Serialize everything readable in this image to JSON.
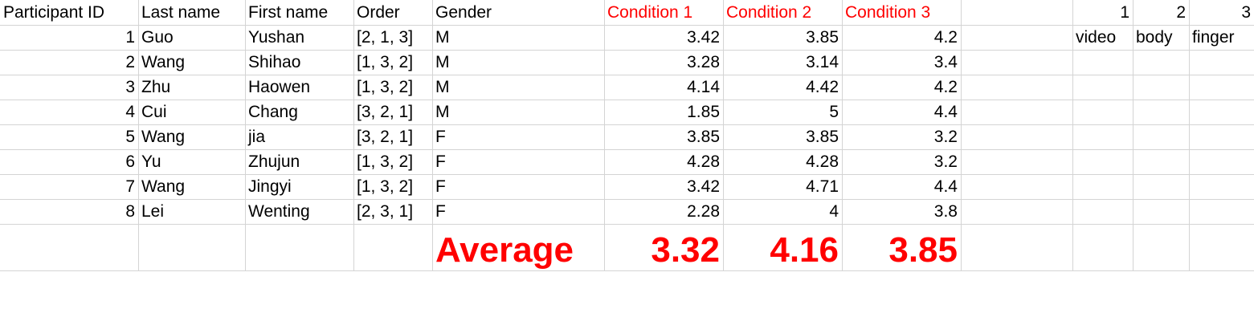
{
  "headers": {
    "participant_id": "Participant ID",
    "last_name": "Last name",
    "first_name": "First name",
    "order": "Order",
    "gender": "Gender",
    "condition_1": "Condition 1",
    "condition_2": "Condition 2",
    "condition_3": "Condition 3",
    "map_1": "1",
    "map_2": "2",
    "map_3": "3"
  },
  "condition_labels": [
    "video",
    "body",
    "finger"
  ],
  "rows": [
    {
      "id": "1",
      "last": "Guo",
      "first": "Yushan",
      "order": "[2, 1, 3]",
      "gender": "M",
      "c1": "3.42",
      "c2": "3.85",
      "c3": "4.2"
    },
    {
      "id": "2",
      "last": "Wang",
      "first": "Shihao",
      "order": "[1, 3, 2]",
      "gender": "M",
      "c1": "3.28",
      "c2": "3.14",
      "c3": "3.4"
    },
    {
      "id": "3",
      "last": "Zhu",
      "first": "Haowen",
      "order": "[1, 3, 2]",
      "gender": "M",
      "c1": "4.14",
      "c2": "4.42",
      "c3": "4.2"
    },
    {
      "id": "4",
      "last": "Cui",
      "first": "Chang",
      "order": "[3, 2, 1]",
      "gender": "M",
      "c1": "1.85",
      "c2": "5",
      "c3": "4.4"
    },
    {
      "id": "5",
      "last": "Wang",
      "first": "jia",
      "order": "[3, 2, 1]",
      "gender": "F",
      "c1": "3.85",
      "c2": "3.85",
      "c3": "3.2"
    },
    {
      "id": "6",
      "last": "Yu",
      "first": "Zhujun",
      "order": "[1, 3, 2]",
      "gender": "F",
      "c1": "4.28",
      "c2": "4.28",
      "c3": "3.2"
    },
    {
      "id": "7",
      "last": "Wang",
      "first": "Jingyi",
      "order": "[1, 3, 2]",
      "gender": "F",
      "c1": "3.42",
      "c2": "4.71",
      "c3": "4.4"
    },
    {
      "id": "8",
      "last": "Lei",
      "first": "Wenting",
      "order": "[2, 3, 1]",
      "gender": "F",
      "c1": "2.28",
      "c2": "4",
      "c3": "3.8"
    }
  ],
  "average": {
    "label": "Average",
    "c1": "3.32",
    "c2": "4.16",
    "c3": "3.85"
  },
  "colors": {
    "accent_red": "#ff0000",
    "gridline": "#d4d4d4"
  }
}
